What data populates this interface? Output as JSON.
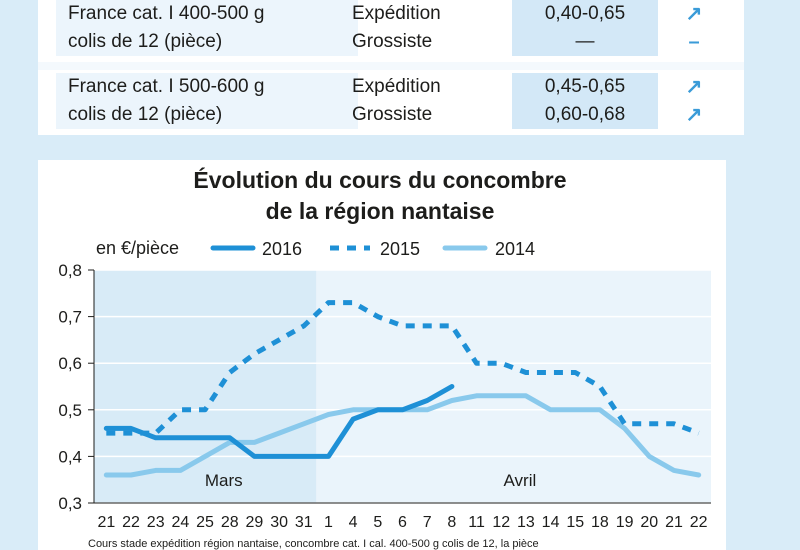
{
  "price_table": {
    "rows": [
      {
        "product": [
          "France cat. I 400-500 g",
          "colis de 12 (pièce)"
        ],
        "stages": [
          "Expédition",
          "Grossiste"
        ],
        "prices": [
          "0,40-0,65",
          "—"
        ],
        "trends": [
          "up",
          "none"
        ]
      },
      {
        "product": [
          "France cat. I 500-600 g",
          "colis de 12 (pièce)"
        ],
        "stages": [
          "Expédition",
          "Grossiste"
        ],
        "prices": [
          "0,45-0,65",
          "0,60-0,68"
        ],
        "trends": [
          "up",
          "up"
        ]
      }
    ],
    "trend_symbols": {
      "up": "↗",
      "none": "–"
    }
  },
  "chart_data": {
    "type": "line",
    "title": [
      "Évolution du cours du concombre",
      "de la région nantaise"
    ],
    "unit_label": "en €/pièce",
    "x": [
      "21",
      "22",
      "23",
      "24",
      "25",
      "28",
      "29",
      "30",
      "31",
      "1",
      "4",
      "5",
      "6",
      "7",
      "8",
      "11",
      "12",
      "13",
      "14",
      "15",
      "18",
      "19",
      "20",
      "21",
      "22"
    ],
    "month_labels": [
      {
        "label": "Mars",
        "at_index": 5
      },
      {
        "label": "Avril",
        "at_index": 17
      }
    ],
    "ylim": [
      0.3,
      0.8
    ],
    "yticks": [
      0.3,
      0.4,
      0.5,
      0.6,
      0.7,
      0.8
    ],
    "ytick_labels": [
      "0,3",
      "0,4",
      "0,5",
      "0,6",
      "0,7",
      "0,8"
    ],
    "series": [
      {
        "name": "2016",
        "style": "solid",
        "color": "#1e90d6",
        "values": [
          0.46,
          0.46,
          0.44,
          0.44,
          0.44,
          0.44,
          0.4,
          0.4,
          0.4,
          0.4,
          0.48,
          0.5,
          0.5,
          0.52,
          0.55,
          null,
          null,
          null,
          null,
          null,
          null,
          null,
          null,
          null,
          null
        ]
      },
      {
        "name": "2015",
        "style": "dashed",
        "color": "#1e90d6",
        "values": [
          0.45,
          0.45,
          0.45,
          0.5,
          0.5,
          0.58,
          0.62,
          0.65,
          0.68,
          0.73,
          0.73,
          0.7,
          0.68,
          0.68,
          0.68,
          0.6,
          0.6,
          0.58,
          0.58,
          0.58,
          0.55,
          0.47,
          0.47,
          0.47,
          0.45
        ]
      },
      {
        "name": "2014",
        "style": "solid",
        "color": "#89c9ec",
        "values": [
          0.36,
          0.36,
          0.37,
          0.37,
          0.4,
          0.43,
          0.43,
          0.45,
          0.47,
          0.49,
          0.5,
          0.5,
          0.5,
          0.5,
          0.52,
          0.53,
          0.53,
          0.53,
          0.5,
          0.5,
          0.5,
          0.46,
          0.4,
          0.37,
          0.36
        ]
      }
    ],
    "grid": true,
    "colors": {
      "plot_bg": "#eaf4fb",
      "march_shade": "#d8ebf7",
      "grid": "#ffffff"
    },
    "footnote": "Cours stade expédition région nantaise, concombre cat. I cal. 400-500 g colis de 12, la pièce"
  }
}
